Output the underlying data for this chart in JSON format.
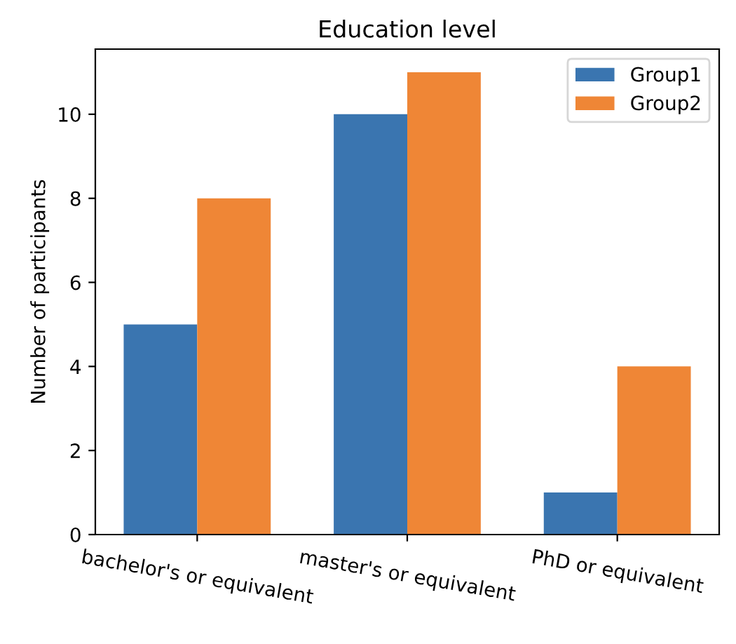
{
  "chart_data": {
    "type": "bar",
    "title": "Education level",
    "ylabel": "Number of participants",
    "categories": [
      "bachelor's or equivalent",
      "master's or equivalent",
      "PhD or equivalent"
    ],
    "series": [
      {
        "name": "Group1",
        "color": "#3a75b0",
        "values": [
          5,
          10,
          1
        ]
      },
      {
        "name": "Group2",
        "color": "#ef8636",
        "values": [
          8,
          11,
          4
        ]
      }
    ],
    "ylim": [
      0,
      11.55
    ],
    "yticks": [
      0,
      2,
      4,
      6,
      8,
      10
    ],
    "grid": false,
    "legend": "top right"
  }
}
